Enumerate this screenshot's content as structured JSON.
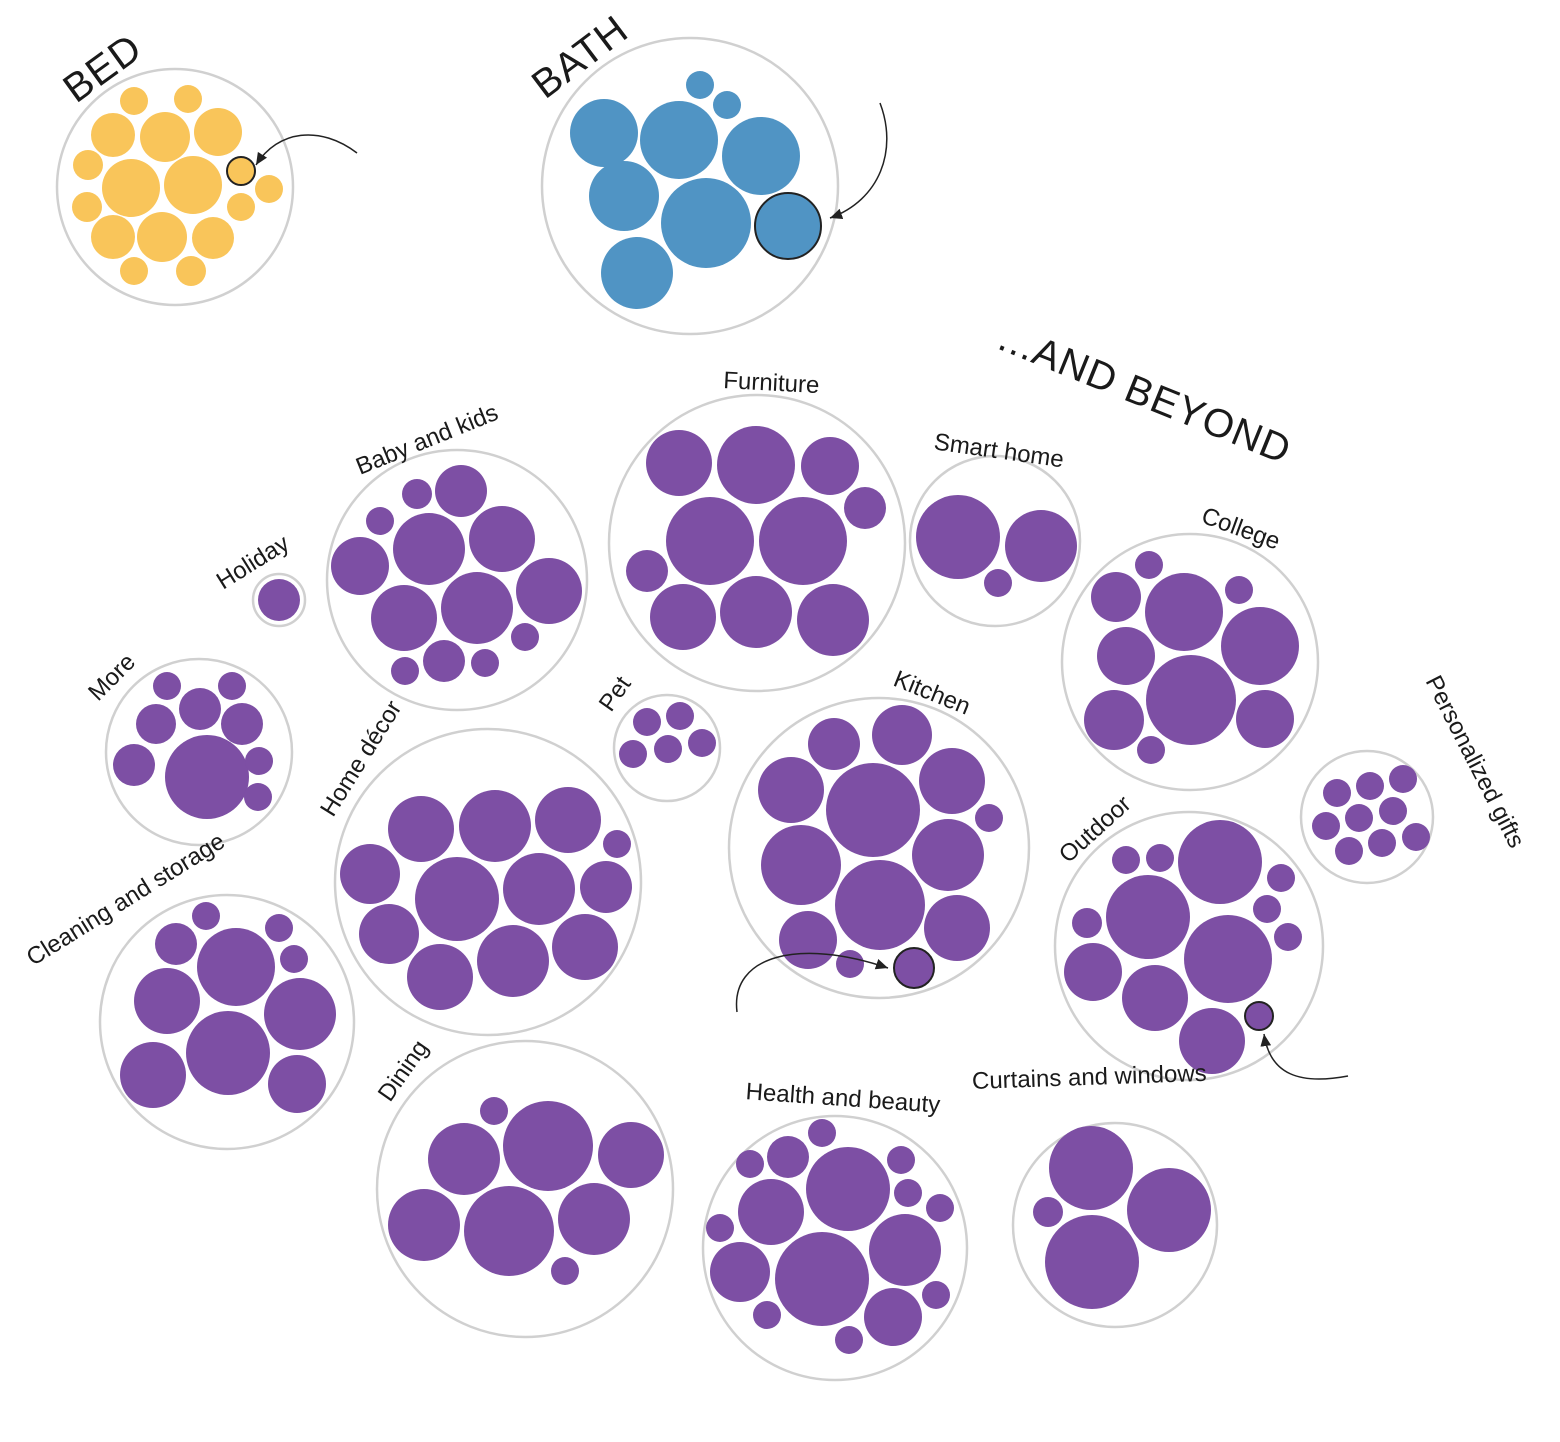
{
  "colors": {
    "bed": "#f9c55a",
    "bath": "#5094c4",
    "beyond": "#7d4fa4",
    "container_stroke": "#d0d0d0",
    "highlight_stroke": "#222222"
  },
  "titles": {
    "bed": "BED",
    "bath": "BATH",
    "beyond": "...AND BEYOND"
  },
  "categories": {
    "bed": "BED",
    "bath": "BATH",
    "furniture": "Furniture",
    "baby_and_kids": "Baby and kids",
    "smart_home": "Smart home",
    "college": "College",
    "holiday": "Holiday",
    "more": "More",
    "pet": "Pet",
    "kitchen": "Kitchen",
    "home_decor": "Home décor",
    "personalized_gifts": "Personalized gifts",
    "outdoor": "Outdoor",
    "cleaning_and_storage": "Cleaning and storage",
    "dining": "Dining",
    "health_and_beauty": "Health and beauty",
    "curtains_and_windows": "Curtains and windows"
  }
}
